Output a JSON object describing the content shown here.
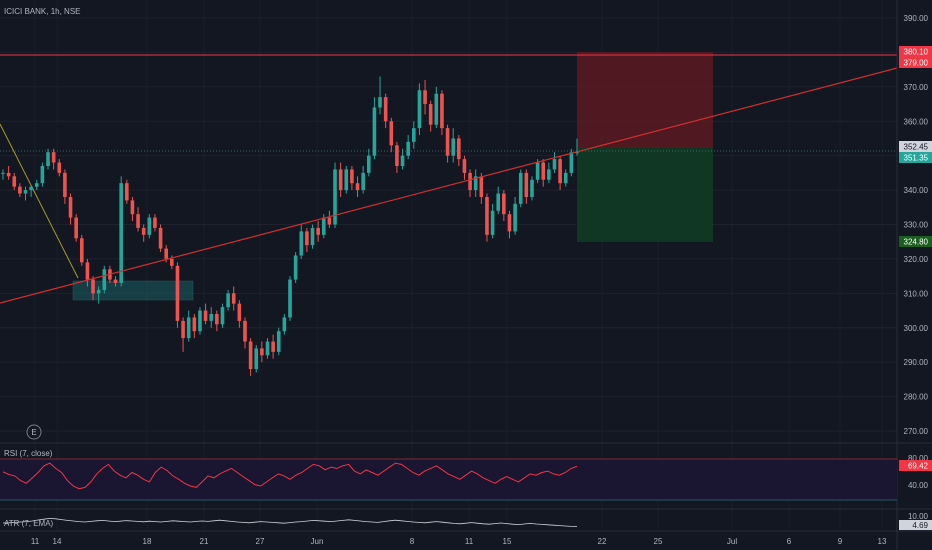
{
  "header": {
    "symbol": "ICICI BANK",
    "interval": "1h",
    "exchange": "NSE"
  },
  "colors": {
    "background": "#131722",
    "up": "#26a69a",
    "down": "#ef5350",
    "trendline": "#d32f2f",
    "resistance": "#f23645",
    "stop_zone": "#5c1a21",
    "target_zone": "#0f3b23",
    "demand_zone": "#1d5f62",
    "rsi_line": "#f23645",
    "atr_line": "#d1d4dc"
  },
  "price_axis": {
    "ticks": [
      "390.00",
      "380.00",
      "370.00",
      "360.00",
      "350.00",
      "340.00",
      "330.00",
      "320.00",
      "310.00",
      "300.00",
      "290.00",
      "280.00",
      "270.00"
    ]
  },
  "price_tags": {
    "resistance_a": "380.10",
    "resistance_b": "379.00",
    "entry": "352.45",
    "current": "351.35",
    "target": "324.80"
  },
  "time_axis": {
    "labels": [
      "11",
      "14",
      "18",
      "21",
      "27",
      "Jun",
      "8",
      "11",
      "15",
      "22",
      "25",
      "Jul",
      "6",
      "9",
      "13"
    ]
  },
  "event_marker": "E",
  "rsi": {
    "title": "RSI (7, close)",
    "axis_top": "80.00",
    "axis_mid": "40.00",
    "value": "69.42"
  },
  "atr": {
    "title": "ATR (7, EMA)",
    "axis_top": "10.00",
    "value": "4.69"
  },
  "chart_data": {
    "type": "candlestick",
    "title": "ICICI BANK, 1h, NSE",
    "ylim": [
      265,
      395
    ],
    "candles": [
      [
        345,
        346,
        343,
        345
      ],
      [
        345,
        347,
        343,
        344
      ],
      [
        344,
        345,
        340,
        341
      ],
      [
        341,
        342,
        338,
        339
      ],
      [
        339,
        341,
        337,
        340
      ],
      [
        340,
        341,
        338,
        341
      ],
      [
        341,
        343,
        340,
        342
      ],
      [
        342,
        348,
        341,
        347
      ],
      [
        347,
        352,
        346,
        351
      ],
      [
        351,
        352,
        346,
        348
      ],
      [
        348,
        349,
        344,
        345
      ],
      [
        345,
        346,
        336,
        338
      ],
      [
        338,
        339,
        330,
        332
      ],
      [
        332,
        333,
        325,
        326
      ],
      [
        326,
        327,
        318,
        319
      ],
      [
        319,
        320,
        312,
        314
      ],
      [
        314,
        315,
        308,
        310
      ],
      [
        310,
        312,
        307,
        311
      ],
      [
        311,
        318,
        310,
        317
      ],
      [
        317,
        318,
        313,
        314
      ],
      [
        314,
        315,
        312,
        313
      ],
      [
        313,
        344,
        312,
        342
      ],
      [
        342,
        343,
        336,
        337
      ],
      [
        337,
        338,
        331,
        333
      ],
      [
        333,
        335,
        328,
        329
      ],
      [
        329,
        330,
        325,
        327
      ],
      [
        327,
        333,
        326,
        332
      ],
      [
        332,
        333,
        328,
        329
      ],
      [
        329,
        330,
        322,
        323
      ],
      [
        323,
        324,
        319,
        320
      ],
      [
        320,
        321,
        317,
        318
      ],
      [
        318,
        319,
        300,
        302
      ],
      [
        302,
        303,
        293,
        297
      ],
      [
        297,
        305,
        296,
        303
      ],
      [
        303,
        304,
        297,
        299
      ],
      [
        299,
        306,
        298,
        305
      ],
      [
        305,
        307,
        301,
        302
      ],
      [
        302,
        306,
        300,
        304
      ],
      [
        304,
        305,
        299,
        301
      ],
      [
        301,
        307,
        300,
        306
      ],
      [
        306,
        311,
        305,
        310
      ],
      [
        310,
        312,
        305,
        307
      ],
      [
        307,
        308,
        300,
        302
      ],
      [
        302,
        303,
        294,
        296
      ],
      [
        296,
        297,
        286,
        288
      ],
      [
        288,
        295,
        287,
        294
      ],
      [
        294,
        296,
        290,
        292
      ],
      [
        292,
        297,
        291,
        296
      ],
      [
        296,
        298,
        291,
        293
      ],
      [
        293,
        300,
        292,
        299
      ],
      [
        299,
        304,
        298,
        303
      ],
      [
        303,
        315,
        302,
        314
      ],
      [
        314,
        322,
        313,
        321
      ],
      [
        321,
        330,
        320,
        328
      ],
      [
        328,
        329,
        322,
        324
      ],
      [
        324,
        330,
        323,
        329
      ],
      [
        329,
        331,
        325,
        327
      ],
      [
        327,
        333,
        326,
        332
      ],
      [
        332,
        334,
        329,
        330
      ],
      [
        330,
        348,
        329,
        346
      ],
      [
        346,
        348,
        338,
        340
      ],
      [
        340,
        347,
        339,
        346
      ],
      [
        346,
        347,
        340,
        342
      ],
      [
        342,
        344,
        338,
        340
      ],
      [
        340,
        347,
        339,
        345
      ],
      [
        345,
        352,
        344,
        350
      ],
      [
        350,
        367,
        349,
        364
      ],
      [
        364,
        373,
        362,
        367
      ],
      [
        367,
        368,
        358,
        360
      ],
      [
        360,
        361,
        351,
        353
      ],
      [
        353,
        354,
        345,
        347
      ],
      [
        347,
        352,
        346,
        350
      ],
      [
        350,
        356,
        349,
        354
      ],
      [
        354,
        360,
        352,
        358
      ],
      [
        358,
        371,
        356,
        369
      ],
      [
        369,
        372,
        362,
        365
      ],
      [
        365,
        366,
        357,
        359
      ],
      [
        359,
        370,
        358,
        368
      ],
      [
        368,
        369,
        356,
        358
      ],
      [
        358,
        359,
        348,
        350
      ],
      [
        350,
        358,
        348,
        355
      ],
      [
        355,
        356,
        347,
        349
      ],
      [
        349,
        350,
        343,
        345
      ],
      [
        345,
        346,
        338,
        340
      ],
      [
        340,
        346,
        338,
        344
      ],
      [
        344,
        345,
        336,
        338
      ],
      [
        338,
        339,
        325,
        327
      ],
      [
        327,
        336,
        326,
        334
      ],
      [
        334,
        341,
        333,
        339
      ],
      [
        339,
        340,
        331,
        333
      ],
      [
        333,
        334,
        326,
        328
      ],
      [
        328,
        338,
        327,
        336
      ],
      [
        336,
        346,
        335,
        345
      ],
      [
        345,
        346,
        336,
        338
      ],
      [
        338,
        344,
        337,
        343
      ],
      [
        343,
        349,
        342,
        348
      ],
      [
        348,
        349,
        341,
        343
      ],
      [
        343,
        348,
        342,
        346
      ],
      [
        346,
        351,
        345,
        349
      ],
      [
        349,
        350,
        340,
        342
      ],
      [
        342,
        346,
        341,
        345
      ],
      [
        345,
        352,
        344,
        351
      ],
      [
        351,
        355,
        350,
        351
      ]
    ],
    "support_trendline": {
      "start": 305,
      "end": 376
    },
    "resistance_level": 380.1,
    "entry_level": 352.45,
    "stop_level": 380.1,
    "target_level": 324.8,
    "rsi_series": [
      61,
      57,
      55,
      48,
      44,
      52,
      60,
      70,
      74,
      66,
      60,
      48,
      40,
      36,
      38,
      46,
      58,
      66,
      72,
      62,
      56,
      52,
      60,
      56,
      50,
      46,
      60,
      68,
      63,
      55,
      50,
      44,
      40,
      38,
      46,
      55,
      52,
      58,
      62,
      66,
      60,
      54,
      48,
      42,
      40,
      46,
      52,
      58,
      55,
      50,
      56,
      60,
      66,
      72,
      70,
      64,
      68,
      66,
      70,
      72,
      62,
      58,
      64,
      60,
      56,
      62,
      68,
      74,
      72,
      66,
      60,
      56,
      62,
      66,
      70,
      64,
      58,
      54,
      50,
      56,
      62,
      58,
      52,
      48,
      44,
      50,
      54,
      50,
      46,
      52,
      58,
      56,
      60,
      62,
      58,
      56,
      60,
      66,
      69
    ],
    "rsi_levels": [
      80,
      40
    ],
    "atr_series": [
      6.5,
      6.6,
      6.8,
      7.0,
      7.2,
      7.5,
      8.0,
      8.4,
      8.8,
      8.6,
      8.2,
      7.8,
      7.5,
      7.2,
      7.0,
      7.3,
      7.6,
      7.8,
      7.5,
      7.2,
      7.4,
      7.7,
      7.5,
      7.3,
      7.1,
      7.4,
      7.2,
      7.0,
      7.3,
      7.6,
      7.4,
      7.2,
      7.0,
      7.3,
      7.5,
      7.3,
      7.6,
      7.9,
      7.6,
      7.3,
      7.0,
      6.8,
      6.6,
      6.9,
      7.2,
      7.0,
      6.8,
      6.6,
      6.4,
      6.7,
      7.0,
      7.2,
      7.5,
      7.8,
      7.6,
      7.4,
      7.2,
      7.5,
      7.8,
      8.1,
      7.8,
      7.5,
      7.2,
      7.0,
      6.8,
      7.2,
      7.6,
      7.9,
      7.6,
      7.3,
      7.0,
      6.8,
      6.6,
      6.9,
      7.2,
      6.9,
      6.6,
      6.3,
      6.1,
      6.4,
      6.7,
      6.4,
      6.1,
      5.9,
      6.2,
      6.5,
      6.2,
      5.9,
      5.7,
      6.0,
      6.3,
      6.0,
      5.8,
      5.6,
      5.4,
      5.2,
      5.0,
      4.8,
      4.69
    ]
  }
}
